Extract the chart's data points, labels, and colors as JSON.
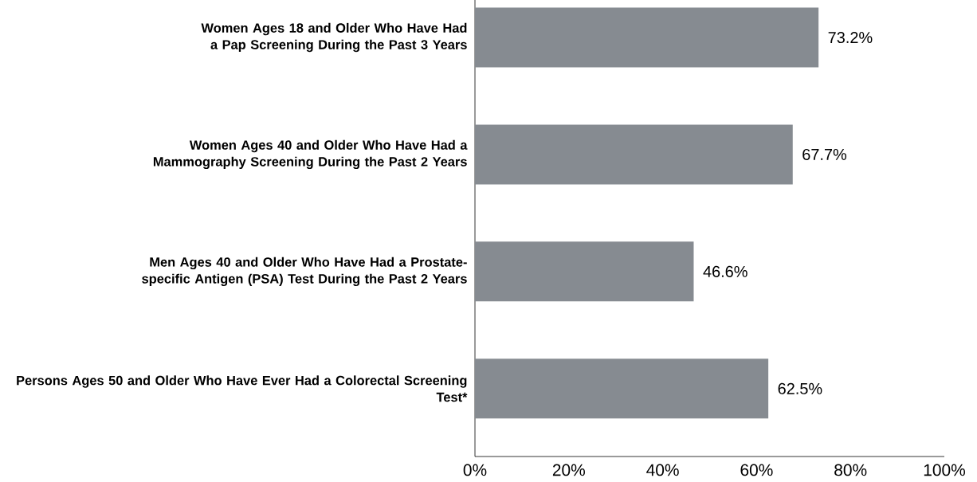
{
  "chart_data": {
    "type": "bar",
    "orientation": "horizontal",
    "categories": [
      "Women Ages 18 and Older Who Have Had a Pap Screening During the Past 3 Years",
      "Women Ages 40 and Older Who Have Had a Mammography Screening During the Past 2 Years",
      "Men Ages 40 and Older Who Have Had a Prostate-specific Antigen (PSA) Test During the Past 2 Years",
      "Persons Ages 50 and Older Who Have Ever Had a Colorectal Screening Test*"
    ],
    "values": [
      73.2,
      67.7,
      46.6,
      62.5
    ],
    "value_labels": [
      "73.2%",
      "67.7%",
      "46.6%",
      "62.5%"
    ],
    "color": "#868b91",
    "xlim": [
      0,
      100
    ],
    "xticks": [
      {
        "value": 0,
        "label": "0%"
      },
      {
        "value": 20,
        "label": "20%"
      },
      {
        "value": 40,
        "label": "40%"
      },
      {
        "value": 60,
        "label": "60%"
      },
      {
        "value": 80,
        "label": "80%"
      },
      {
        "value": 100,
        "label": "100%"
      }
    ]
  }
}
